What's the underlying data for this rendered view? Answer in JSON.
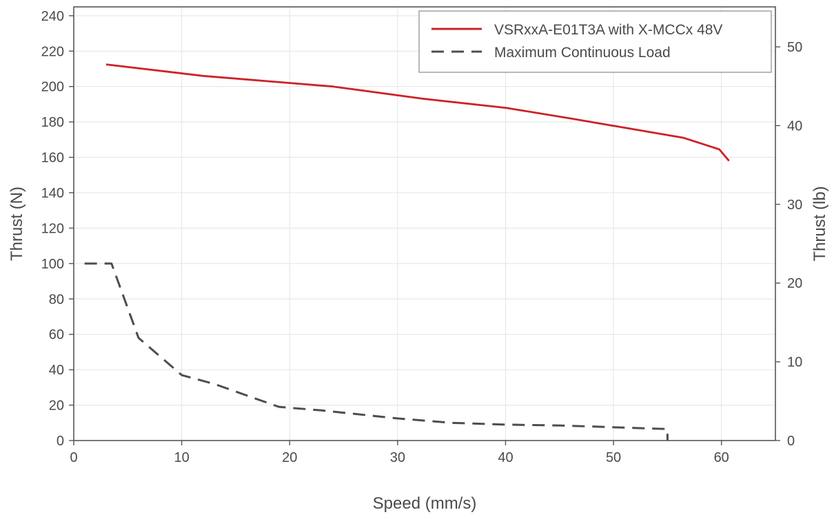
{
  "chart_data": {
    "type": "line",
    "title": "",
    "xlabel": "Speed (mm/s)",
    "ylabel": "Thrust (N)",
    "y2label": "Thrust (lb)",
    "xlim": [
      0,
      65
    ],
    "ylim": [
      0,
      245
    ],
    "y2lim": [
      0,
      55.08
    ],
    "xticks": [
      0,
      10,
      20,
      30,
      40,
      50,
      60
    ],
    "yticks": [
      0,
      20,
      40,
      60,
      80,
      100,
      120,
      140,
      160,
      180,
      200,
      220,
      240
    ],
    "y2ticks": [
      0,
      10,
      20,
      30,
      40,
      50
    ],
    "grid": true,
    "legend_position": "top-right",
    "series": [
      {
        "name": "VSRxxA-E01T3A with X-MCCx 48V",
        "color": "#cc2229",
        "style": "solid",
        "x": [
          3,
          12,
          24,
          32.5,
          40,
          45.5,
          46,
          56.5,
          59.8,
          60.7
        ],
        "y": [
          212.5,
          206,
          200,
          193,
          188,
          182.5,
          182,
          171,
          164.5,
          158
        ]
      },
      {
        "name": "Maximum Continuous Load",
        "color": "#4d4d4d",
        "style": "dashed",
        "x": [
          1,
          3.5,
          6,
          10,
          13,
          19,
          23,
          30,
          35,
          40,
          45,
          50,
          55,
          55
        ],
        "y": [
          100,
          100,
          58,
          37,
          32,
          19,
          17,
          12.5,
          10,
          9,
          8.5,
          7.5,
          6.5,
          0
        ]
      }
    ]
  }
}
